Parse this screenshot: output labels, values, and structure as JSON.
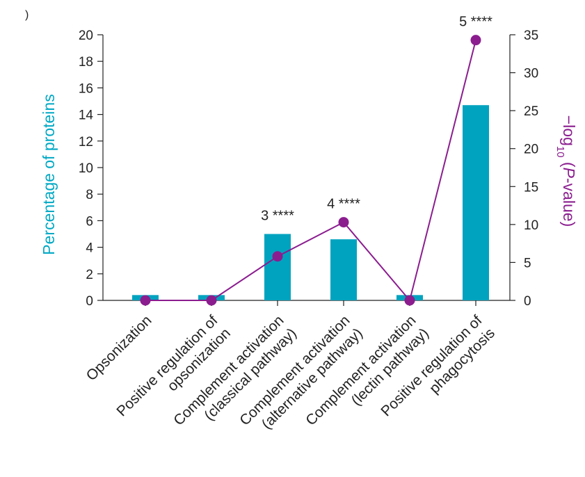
{
  "panel_label": ")",
  "chart_data": {
    "type": "bar",
    "categories": [
      [
        "Opsonization"
      ],
      [
        "Positive regulation of",
        "opsonization"
      ],
      [
        "Complement activation",
        "(classical pathway)"
      ],
      [
        "Complement activation",
        "(alternative pathway)"
      ],
      [
        "Complement activation",
        "(lectin pathway)"
      ],
      [
        "Positive regulation of",
        "phagocytosis"
      ]
    ],
    "series": [
      {
        "name": "Percentage of proteins",
        "axis": "left",
        "kind": "bar",
        "values": [
          0.4,
          0.4,
          5.0,
          4.6,
          0.4,
          14.7
        ]
      },
      {
        "name": "-log10 (P-value)",
        "axis": "right",
        "kind": "line",
        "values": [
          0,
          0,
          5.8,
          10.3,
          0,
          34.3
        ]
      }
    ],
    "annotations": [
      {
        "index": 2,
        "text": "3 ****"
      },
      {
        "index": 3,
        "text": "4 ****"
      },
      {
        "index": 5,
        "text": "5 ****"
      }
    ],
    "ylabel": "Percentage of proteins",
    "y2label_parts": [
      "−log",
      "10",
      " (",
      "P",
      "-value)"
    ],
    "ylim": [
      0,
      20
    ],
    "y2lim": [
      0,
      35
    ],
    "yticks": [
      0,
      2,
      4,
      6,
      8,
      10,
      12,
      14,
      16,
      18,
      20
    ],
    "y2ticks": [
      0,
      5,
      10,
      15,
      20,
      25,
      30,
      35
    ],
    "colors": {
      "bar": "#00a3bf",
      "line": "#8b1d8f",
      "axis": "#222222",
      "left_title": "#00a8c4",
      "right_title": "#8b1d8f"
    }
  }
}
